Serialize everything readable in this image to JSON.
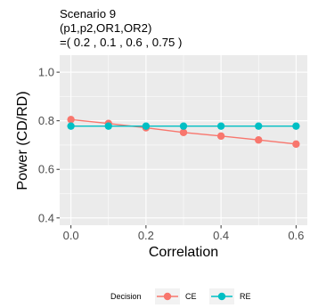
{
  "chart_data": {
    "type": "line",
    "title_lines": [
      "Scenario 9",
      " (p1,p2,OR1,OR2)",
      "=( 0.2 , 0.1 , 0.6 , 0.75 )"
    ],
    "xlabel": "Correlation",
    "ylabel": "Power (CD/RD)",
    "x": [
      0.0,
      0.1,
      0.2,
      0.3,
      0.4,
      0.5,
      0.6
    ],
    "xlim": [
      -0.03,
      0.63
    ],
    "ylim": [
      0.37,
      1.07
    ],
    "x_ticks": [
      0.0,
      0.2,
      0.4,
      0.6
    ],
    "x_tick_labels": [
      "0.0",
      "0.2",
      "0.4",
      "0.6"
    ],
    "y_ticks": [
      0.4,
      0.6,
      0.8,
      1.0
    ],
    "y_tick_labels": [
      "0.4",
      "0.6",
      "0.8",
      "1.0"
    ],
    "grid": true,
    "legend_title": "Decision",
    "legend_position": "bottom",
    "series": [
      {
        "name": "CE",
        "color": "#F8766D",
        "values": [
          0.805,
          0.789,
          0.771,
          0.752,
          0.737,
          0.721,
          0.704
        ]
      },
      {
        "name": "RE",
        "color": "#00BFC4",
        "values": [
          0.778,
          0.778,
          0.778,
          0.778,
          0.778,
          0.778,
          0.778
        ]
      }
    ],
    "panel_background": "#EBEBEB",
    "grid_color": "#FFFFFF"
  }
}
